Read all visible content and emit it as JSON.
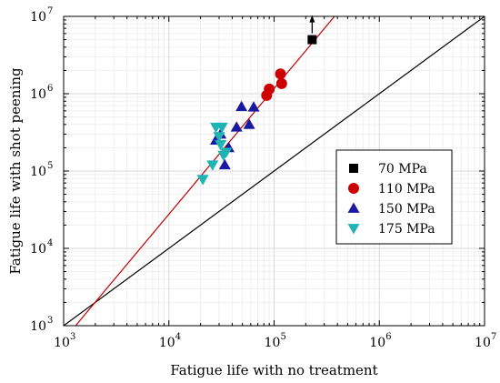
{
  "chart_data": {
    "type": "scatter",
    "title": "",
    "xlabel": "Fatigue life with no treatment",
    "ylabel": "Fatigue life with shot peening",
    "x_scale": "log",
    "y_scale": "log",
    "xlim": [
      1000,
      10000000
    ],
    "ylim": [
      1000,
      10000000
    ],
    "grid": true,
    "legend_position": "right",
    "x_ticks": [
      {
        "base": "10",
        "exp": "3",
        "value": 1000
      },
      {
        "base": "10",
        "exp": "4",
        "value": 10000
      },
      {
        "base": "10",
        "exp": "5",
        "value": 100000
      },
      {
        "base": "10",
        "exp": "6",
        "value": 1000000
      },
      {
        "base": "10",
        "exp": "7",
        "value": 10000000
      }
    ],
    "y_ticks": [
      {
        "base": "10",
        "exp": "3",
        "value": 1000
      },
      {
        "base": "10",
        "exp": "4",
        "value": 10000
      },
      {
        "base": "10",
        "exp": "5",
        "value": 100000
      },
      {
        "base": "10",
        "exp": "6",
        "value": 1000000
      },
      {
        "base": "10",
        "exp": "7",
        "value": 10000000
      }
    ],
    "lines": [
      {
        "color": "#000000",
        "points": [
          [
            1000,
            1000
          ],
          [
            10000000,
            10000000
          ]
        ]
      },
      {
        "color": "#c00000",
        "points": [
          [
            1300,
            1000
          ],
          [
            375000,
            10000000
          ]
        ]
      }
    ],
    "series": [
      {
        "name": "70 MPa",
        "marker": "square",
        "color": "#000000",
        "points": [
          [
            230000,
            5000000
          ]
        ],
        "runout_arrow": true
      },
      {
        "name": "110 MPa",
        "marker": "circle",
        "color": "#cc0000",
        "points": [
          [
            85000,
            950000
          ],
          [
            90000,
            1150000
          ],
          [
            115000,
            1800000
          ],
          [
            118000,
            1350000
          ]
        ]
      },
      {
        "name": "150 MPa",
        "marker": "triangle-up",
        "color": "#1a1aa0",
        "points": [
          [
            28000,
            250000
          ],
          [
            31000,
            300000
          ],
          [
            34000,
            120000
          ],
          [
            37000,
            200000
          ],
          [
            44000,
            370000
          ],
          [
            49000,
            680000
          ],
          [
            58000,
            400000
          ],
          [
            64000,
            670000
          ]
        ]
      },
      {
        "name": "175 MPa",
        "marker": "triangle-down",
        "color": "#1fb3b3",
        "points": [
          [
            21000,
            78000
          ],
          [
            26000,
            120000
          ],
          [
            28000,
            370000
          ],
          [
            30000,
            280000
          ],
          [
            31000,
            220000
          ],
          [
            32000,
            370000
          ],
          [
            33000,
            160000
          ],
          [
            35000,
            175000
          ]
        ]
      }
    ]
  }
}
